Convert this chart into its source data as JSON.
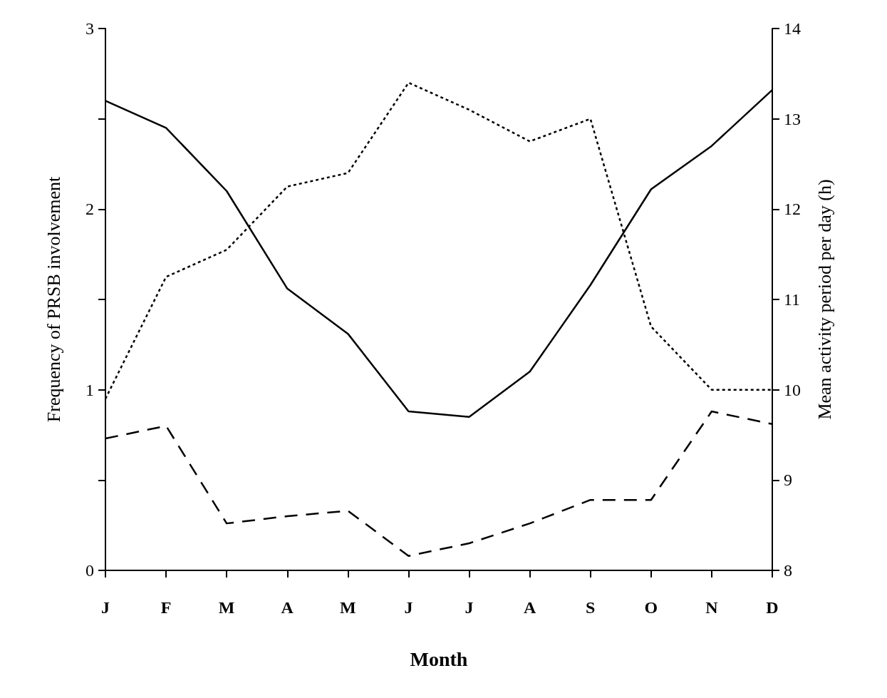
{
  "chart_data": {
    "type": "line",
    "xlabel": "Month",
    "ylabel": "Frequency of PRSB involvement",
    "y2label": "Mean activity period per day (h)",
    "categories": [
      "J",
      "F",
      "M",
      "A",
      "M",
      "J",
      "J",
      "A",
      "S",
      "O",
      "N",
      "D"
    ],
    "series": [
      {
        "color": "#000000",
        "line_style": "solid",
        "values": [
          2.6,
          2.45,
          2.1,
          1.56,
          1.31,
          0.88,
          0.85,
          1.1,
          1.58,
          2.11,
          2.35,
          2.66
        ]
      },
      {
        "color": "#000000",
        "line_style": "dashed",
        "values": [
          0.73,
          0.8,
          0.26,
          0.3,
          0.33,
          0.08,
          0.15,
          0.26,
          0.39,
          0.39,
          0.88,
          0.81
        ]
      },
      {
        "color": "#000000",
        "line_style": "dotted",
        "axis": "y2",
        "values": [
          9.9,
          11.25,
          11.55,
          12.25,
          12.4,
          13.4,
          13.1,
          12.75,
          13.0,
          10.7,
          10.0,
          10.0
        ]
      }
    ],
    "ylim": [
      0,
      3
    ],
    "yticks": [
      0,
      {
        "value": 0.5,
        "label": null
      },
      1,
      {
        "value": 1.5,
        "label": null
      },
      2,
      {
        "value": 2.5,
        "label": null
      },
      3
    ],
    "y2lim": [
      8,
      14
    ],
    "y2ticks": [
      8,
      9,
      10,
      11,
      12,
      13,
      14
    ],
    "grid": false
  }
}
